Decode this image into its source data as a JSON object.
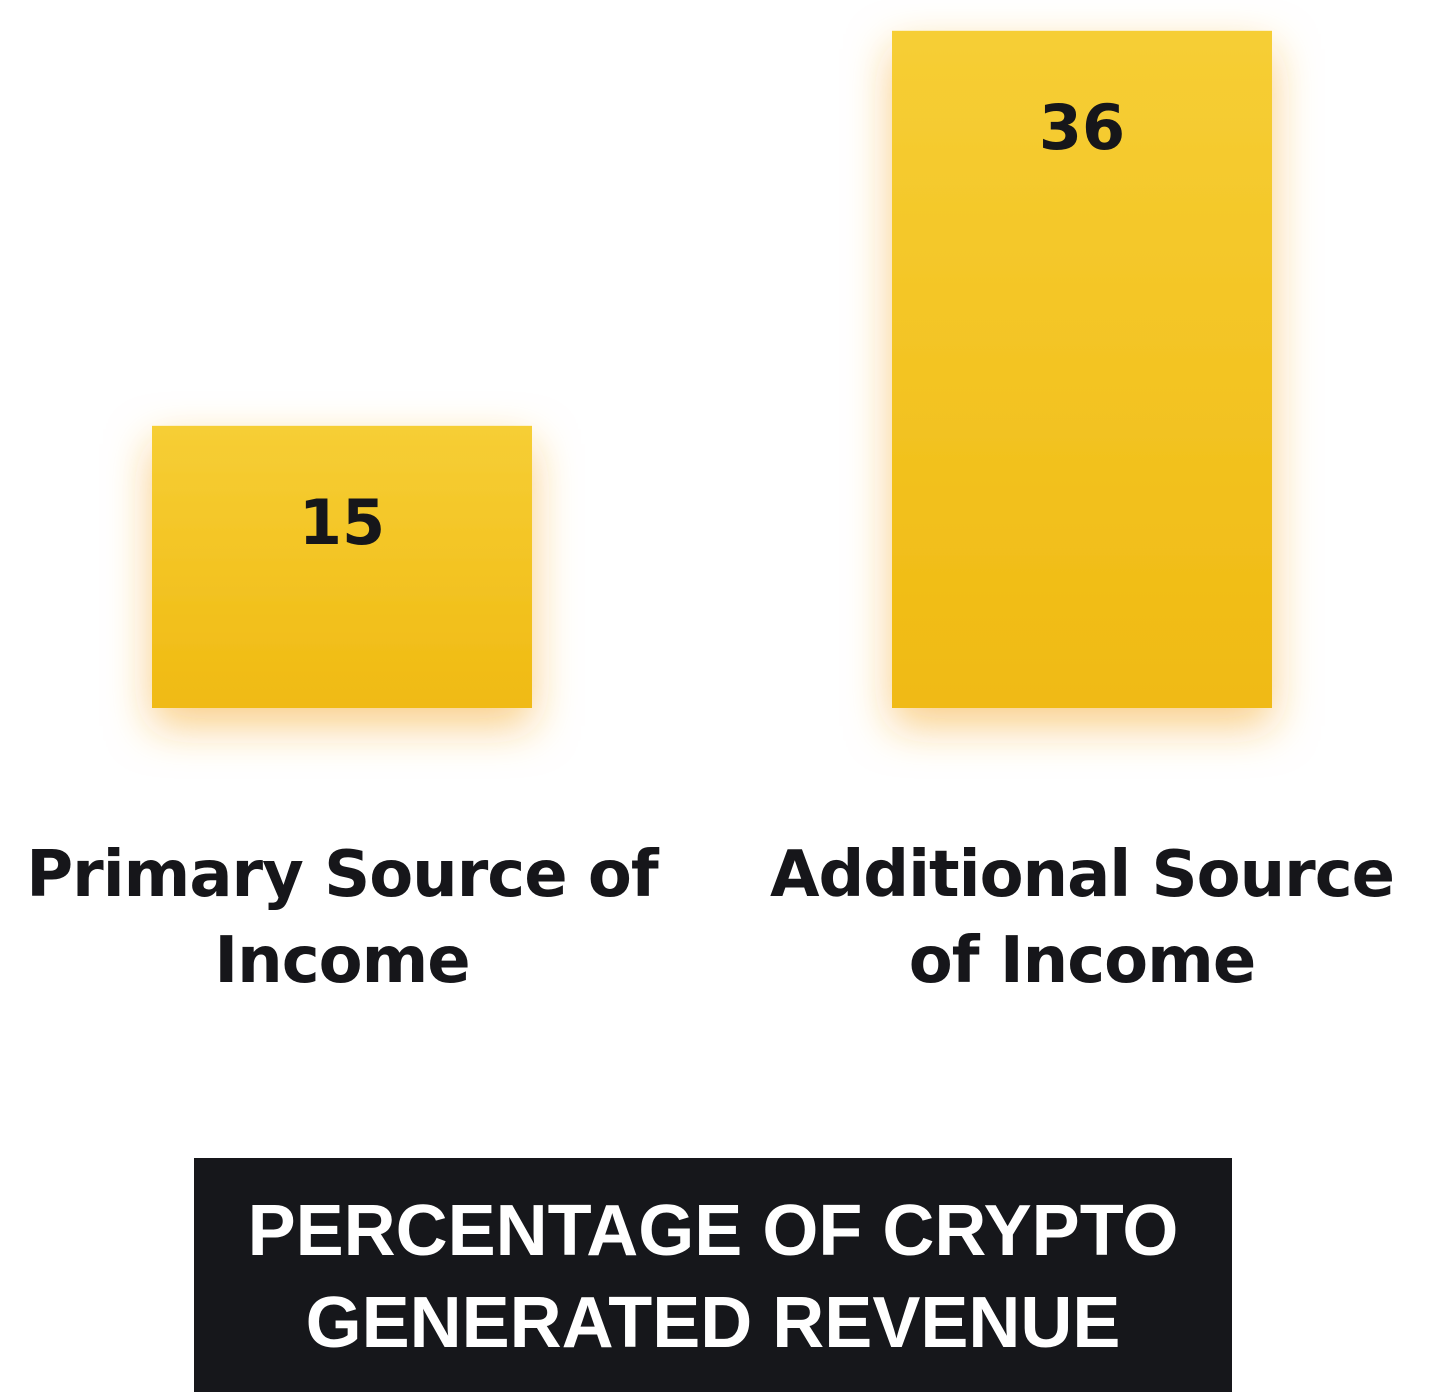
{
  "chart_data": {
    "type": "bar",
    "categories": [
      "Primary Source of Income",
      "Additional Source of Income"
    ],
    "values": [
      15,
      36
    ],
    "value_labels": [
      "15",
      "36"
    ],
    "title": "PERCENTAGE OF CRYPTO GENERATED REVENUE",
    "xlabel": "",
    "ylabel": "",
    "ylim": [
      0,
      37
    ],
    "grid": false,
    "legend": "none",
    "bar_color": "#F0BA12",
    "bar_glow_color": "#F5A623",
    "title_background": "#16171B",
    "title_color": "#FFFFFF"
  }
}
